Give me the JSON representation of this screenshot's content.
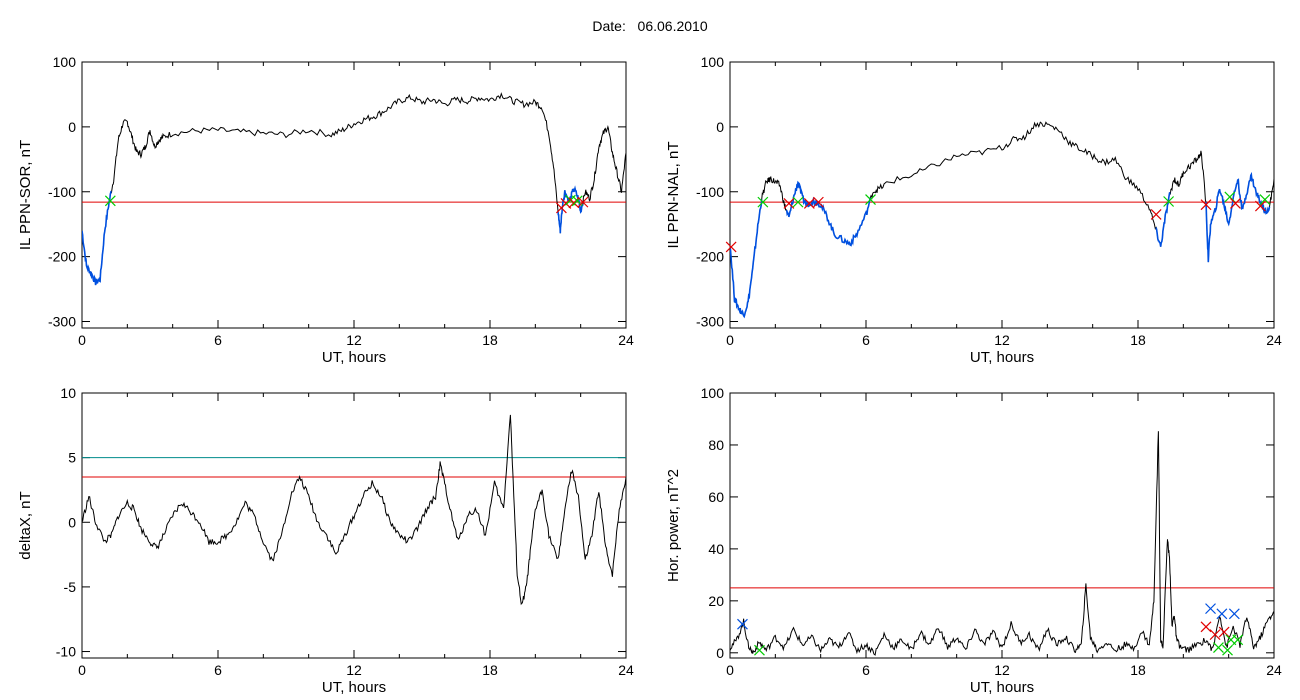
{
  "page": {
    "title_label": "Date:",
    "title_value": "06.06.2010"
  },
  "colors": {
    "axis": "#000000",
    "trace": "#000000",
    "threshold": "#e00000",
    "threshold2": "#008c8c",
    "highlight": "#0050e0",
    "cross_red": "#e00000",
    "cross_green": "#00cc00",
    "cross_blue": "#0050e0"
  },
  "chart_data": [
    {
      "id": "il-sor",
      "type": "line",
      "xlabel": "UT, hours",
      "ylabel": "IL PPN-SOR, nT",
      "xlim": [
        0,
        24
      ],
      "ylim": [
        -310,
        100
      ],
      "xticks": [
        0,
        6,
        12,
        18,
        24
      ],
      "yticks": [
        -300,
        -200,
        -100,
        0,
        100
      ],
      "threshold": -116,
      "series": [
        {
          "x": [
            0,
            0.2,
            0.4,
            0.6,
            0.8,
            1.0,
            1.2,
            1.4,
            1.6,
            1.8,
            2.0,
            2.2,
            2.4,
            2.6,
            2.8,
            3.0,
            3.2,
            3.4,
            3.6,
            4.0,
            5.0,
            6.0,
            7.0,
            8.0,
            9.0,
            10.0,
            11.0,
            11.5,
            12.0,
            12.5,
            13.0,
            13.5,
            14.0,
            14.5,
            15.0,
            15.5,
            16.0,
            16.5,
            17.0,
            17.5,
            18.0,
            18.5,
            19.0,
            19.5,
            20.0,
            20.3,
            20.6,
            20.8,
            21.0,
            21.1,
            21.2,
            21.3,
            21.5,
            21.7,
            21.9,
            22.0,
            22.2,
            22.4,
            22.6,
            22.8,
            23.0,
            23.2,
            23.4,
            23.6,
            23.8,
            24.0
          ],
          "y": [
            -160,
            -215,
            -225,
            -240,
            -235,
            -160,
            -115,
            -80,
            -20,
            5,
            8,
            -15,
            -38,
            -42,
            -30,
            -5,
            -30,
            -20,
            -15,
            -10,
            -6,
            -5,
            -8,
            -10,
            -12,
            -5,
            -12,
            -5,
            5,
            12,
            18,
            28,
            40,
            45,
            38,
            42,
            35,
            42,
            40,
            45,
            42,
            50,
            40,
            35,
            38,
            30,
            -10,
            -60,
            -130,
            -160,
            -120,
            -100,
            -115,
            -95,
            -110,
            -130,
            -100,
            -110,
            -80,
            -30,
            -10,
            0,
            -40,
            -70,
            -100,
            -40
          ]
        }
      ],
      "highlights": [
        [
          0,
          1.3
        ],
        [
          21.0,
          22.1
        ]
      ],
      "markers": [
        {
          "x": 1.25,
          "y": -114,
          "color": "green"
        },
        {
          "x": 21.15,
          "y": -125,
          "color": "red"
        },
        {
          "x": 21.35,
          "y": -118,
          "color": "red"
        },
        {
          "x": 21.55,
          "y": -113,
          "color": "green"
        },
        {
          "x": 21.7,
          "y": -117,
          "color": "red"
        },
        {
          "x": 21.85,
          "y": -114,
          "color": "green"
        },
        {
          "x": 22.1,
          "y": -116,
          "color": "red"
        }
      ]
    },
    {
      "id": "il-nal",
      "type": "line",
      "xlabel": "UT, hours",
      "ylabel": "IL PPN-NAL, nT",
      "xlim": [
        0,
        24
      ],
      "ylim": [
        -310,
        100
      ],
      "xticks": [
        0,
        6,
        12,
        18,
        24
      ],
      "yticks": [
        -300,
        -200,
        -100,
        0,
        100
      ],
      "threshold": -116,
      "series": [
        {
          "x": [
            0,
            0.2,
            0.4,
            0.6,
            0.8,
            1.0,
            1.2,
            1.4,
            1.6,
            1.8,
            2.0,
            2.2,
            2.4,
            2.6,
            2.8,
            3.0,
            3.2,
            3.4,
            3.6,
            3.8,
            4.0,
            4.3,
            4.6,
            5.0,
            5.3,
            5.6,
            6.0,
            6.3,
            6.6,
            7.0,
            8.0,
            9.0,
            10.0,
            11.0,
            12.0,
            12.5,
            13.0,
            13.5,
            14.0,
            14.5,
            15.0,
            15.5,
            16.0,
            16.5,
            17.0,
            17.5,
            18.0,
            18.5,
            18.8,
            19.0,
            19.2,
            19.4,
            19.6,
            19.8,
            20.0,
            20.3,
            20.6,
            20.8,
            21.0,
            21.1,
            21.2,
            21.4,
            21.6,
            21.8,
            22.0,
            22.2,
            22.4,
            22.6,
            22.8,
            23.0,
            23.2,
            23.4,
            23.6,
            23.8,
            24.0
          ],
          "y": [
            -180,
            -265,
            -280,
            -290,
            -270,
            -220,
            -160,
            -110,
            -85,
            -80,
            -85,
            -90,
            -120,
            -140,
            -110,
            -85,
            -110,
            -120,
            -115,
            -115,
            -120,
            -140,
            -165,
            -175,
            -180,
            -165,
            -135,
            -100,
            -95,
            -85,
            -75,
            -60,
            -45,
            -40,
            -32,
            -20,
            -15,
            5,
            4,
            -5,
            -25,
            -35,
            -45,
            -55,
            -50,
            -80,
            -95,
            -125,
            -160,
            -185,
            -140,
            -105,
            -80,
            -90,
            -70,
            -60,
            -50,
            -40,
            -120,
            -205,
            -150,
            -130,
            -95,
            -120,
            -150,
            -110,
            -80,
            -130,
            -100,
            -75,
            -100,
            -115,
            -130,
            -125,
            -80
          ]
        }
      ],
      "highlights": [
        [
          0,
          1.4
        ],
        [
          2.5,
          6.2
        ],
        [
          18.8,
          19.4
        ],
        [
          21.0,
          23.8
        ]
      ],
      "markers": [
        {
          "x": 0.05,
          "y": -185,
          "color": "red"
        },
        {
          "x": 1.45,
          "y": -116,
          "color": "green"
        },
        {
          "x": 2.6,
          "y": -118,
          "color": "red"
        },
        {
          "x": 3.0,
          "y": -116,
          "color": "green"
        },
        {
          "x": 3.5,
          "y": -118,
          "color": "red"
        },
        {
          "x": 3.9,
          "y": -116,
          "color": "red"
        },
        {
          "x": 6.2,
          "y": -112,
          "color": "green"
        },
        {
          "x": 18.8,
          "y": -135,
          "color": "red"
        },
        {
          "x": 19.35,
          "y": -115,
          "color": "green"
        },
        {
          "x": 21.0,
          "y": -120,
          "color": "red"
        },
        {
          "x": 22.05,
          "y": -108,
          "color": "green"
        },
        {
          "x": 22.3,
          "y": -118,
          "color": "red"
        },
        {
          "x": 23.4,
          "y": -122,
          "color": "red"
        },
        {
          "x": 23.6,
          "y": -112,
          "color": "green"
        }
      ]
    },
    {
      "id": "deltax",
      "type": "line",
      "xlabel": "UT, hours",
      "ylabel": "deltaX, nT",
      "xlim": [
        0,
        24
      ],
      "ylim": [
        -10.5,
        10
      ],
      "xticks": [
        0,
        6,
        12,
        18,
        24
      ],
      "yticks": [
        -10,
        -5,
        0,
        5,
        10
      ],
      "threshold": 3.5,
      "threshold2": 5,
      "series": [
        {
          "x": [
            0,
            0.3,
            0.6,
            1.0,
            1.3,
            1.6,
            2.0,
            2.3,
            2.6,
            3.0,
            3.3,
            3.6,
            4.0,
            4.4,
            4.8,
            5.2,
            5.6,
            6.0,
            6.4,
            6.8,
            7.2,
            7.6,
            8.0,
            8.4,
            8.8,
            9.2,
            9.6,
            10.0,
            10.4,
            10.8,
            11.2,
            11.6,
            12.0,
            12.4,
            12.8,
            13.2,
            13.6,
            14.0,
            14.4,
            14.8,
            15.2,
            15.6,
            15.8,
            16.0,
            16.3,
            16.6,
            17.0,
            17.4,
            17.8,
            18.2,
            18.6,
            18.9,
            19.0,
            19.2,
            19.4,
            19.6,
            19.8,
            20.0,
            20.3,
            20.6,
            21.0,
            21.3,
            21.6,
            21.9,
            22.2,
            22.5,
            22.8,
            23.1,
            23.4,
            23.7,
            24.0
          ],
          "y": [
            0,
            2,
            0,
            -1.5,
            -1,
            0.5,
            1.5,
            1,
            -0.5,
            -1.5,
            -2,
            -1,
            0.5,
            1.5,
            0.8,
            0,
            -1.5,
            -1.5,
            -1,
            0,
            1.5,
            0.5,
            -1.5,
            -3,
            -1,
            2,
            3.5,
            2,
            0,
            -1,
            -2.5,
            -1,
            0.5,
            2,
            3,
            2,
            0,
            -1,
            -1.5,
            -0.5,
            1,
            2,
            4.5,
            3,
            0.5,
            -1.5,
            0.5,
            1,
            -1,
            3,
            1,
            8.5,
            4,
            -4,
            -6.5,
            -5,
            -2,
            1,
            2.5,
            -1,
            -3,
            1,
            4,
            2,
            -3,
            -1,
            2.5,
            -2,
            -4,
            1,
            3.5
          ]
        }
      ]
    },
    {
      "id": "hor-power",
      "type": "line",
      "xlabel": "UT, hours",
      "ylabel": "Hor. power, nT^2",
      "xlim": [
        0,
        24
      ],
      "ylim": [
        -2,
        100
      ],
      "xticks": [
        0,
        6,
        12,
        18,
        24
      ],
      "yticks": [
        0,
        20,
        40,
        60,
        80,
        100
      ],
      "threshold": 25,
      "series": [
        {
          "x": [
            0,
            0.3,
            0.6,
            0.8,
            1.0,
            1.3,
            1.6,
            2.0,
            2.4,
            2.8,
            3.2,
            3.6,
            4.0,
            4.4,
            4.8,
            5.2,
            5.6,
            6.0,
            6.4,
            6.8,
            7.2,
            7.6,
            8.0,
            8.4,
            8.8,
            9.2,
            9.6,
            10.0,
            10.4,
            10.8,
            11.2,
            11.6,
            12.0,
            12.4,
            12.8,
            13.2,
            13.6,
            14.0,
            14.4,
            14.8,
            15.2,
            15.5,
            15.7,
            15.9,
            16.2,
            16.6,
            17.0,
            17.4,
            17.8,
            18.2,
            18.5,
            18.7,
            18.9,
            19.0,
            19.1,
            19.3,
            19.4,
            19.5,
            19.6,
            19.7,
            19.9,
            20.2,
            20.6,
            21.0,
            21.3,
            21.6,
            21.9,
            22.2,
            22.5,
            22.8,
            23.1,
            23.4,
            23.7,
            24.0
          ],
          "y": [
            2,
            5,
            12,
            3,
            0,
            4,
            1,
            6,
            2,
            9,
            3,
            6,
            1,
            5,
            2,
            8,
            1,
            3,
            0,
            7,
            2,
            5,
            1,
            8,
            3,
            10,
            2,
            6,
            1,
            9,
            3,
            8,
            2,
            11,
            4,
            7,
            1,
            9,
            3,
            6,
            1,
            3,
            26,
            6,
            1,
            4,
            1,
            3,
            2,
            8,
            3,
            20,
            86,
            5,
            2,
            44,
            35,
            10,
            15,
            5,
            2,
            1,
            3,
            5,
            1,
            15,
            2,
            10,
            3,
            14,
            2,
            6,
            12,
            16
          ]
        }
      ],
      "markers": [
        {
          "x": 0.55,
          "y": 11,
          "color": "blue"
        },
        {
          "x": 1.3,
          "y": 1,
          "color": "green"
        },
        {
          "x": 21.0,
          "y": 10,
          "color": "red"
        },
        {
          "x": 21.2,
          "y": 17,
          "color": "blue"
        },
        {
          "x": 21.4,
          "y": 7,
          "color": "red"
        },
        {
          "x": 21.55,
          "y": 2,
          "color": "green"
        },
        {
          "x": 21.7,
          "y": 15,
          "color": "blue"
        },
        {
          "x": 21.8,
          "y": 8,
          "color": "red"
        },
        {
          "x": 21.95,
          "y": 1,
          "color": "green"
        },
        {
          "x": 22.1,
          "y": 5,
          "color": "green"
        },
        {
          "x": 22.25,
          "y": 15,
          "color": "blue"
        },
        {
          "x": 22.4,
          "y": 5,
          "color": "green"
        }
      ]
    }
  ]
}
